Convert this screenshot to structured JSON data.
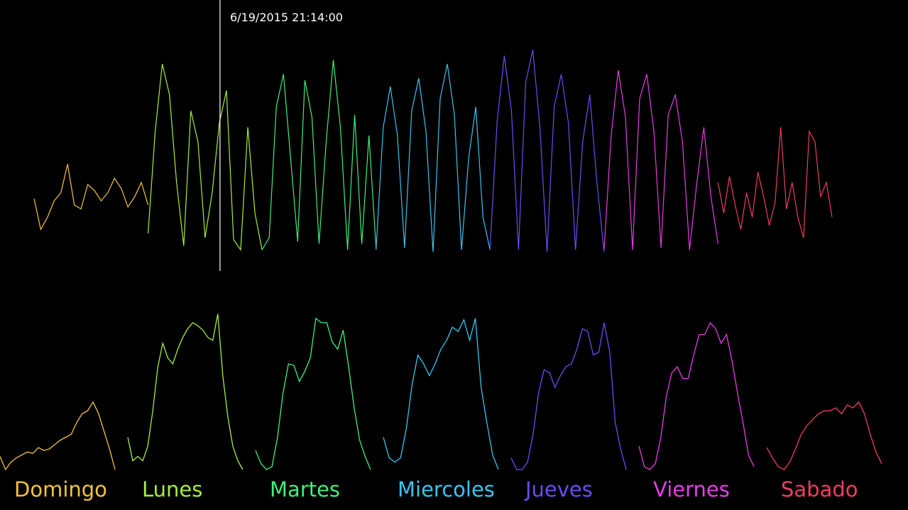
{
  "timestamp": "6/19/2015 21:14:00",
  "chart_data": [
    {
      "type": "line",
      "scale": "normalized 0-1",
      "cursor_fraction": 0.233,
      "series": [
        {
          "day": "Domingo",
          "color": "#f6c33a",
          "values": [
            0.27,
            0.12,
            0.18,
            0.26,
            0.3,
            0.44,
            0.24,
            0.22,
            0.34,
            0.31,
            0.26,
            0.3,
            0.37,
            0.32,
            0.23,
            0.28,
            0.35,
            0.24
          ]
        },
        {
          "day": "Lunes",
          "color": "#a6ef3a",
          "values": [
            0.1,
            0.6,
            0.93,
            0.78,
            0.35,
            0.04,
            0.7,
            0.55,
            0.08,
            0.3,
            0.64,
            0.8,
            0.07,
            0.02,
            0.62,
            0.2,
            0.02
          ]
        },
        {
          "day": "Martes",
          "color": "#3ef07b",
          "values": [
            0.02,
            0.08,
            0.72,
            0.88,
            0.47,
            0.06,
            0.85,
            0.67,
            0.05,
            0.55,
            0.95,
            0.62,
            0.02,
            0.68,
            0.05,
            0.58,
            0.03
          ]
        },
        {
          "day": "Miercoles",
          "color": "#3cc4f0",
          "values": [
            0.02,
            0.62,
            0.82,
            0.58,
            0.03,
            0.7,
            0.86,
            0.6,
            0.01,
            0.76,
            0.93,
            0.68,
            0.02,
            0.47,
            0.72,
            0.18,
            0.02
          ]
        },
        {
          "day": "Jueves",
          "color": "#6b4cf5",
          "values": [
            0.03,
            0.65,
            0.97,
            0.7,
            0.02,
            0.84,
            1.0,
            0.62,
            0.01,
            0.72,
            0.88,
            0.64,
            0.02,
            0.55,
            0.78,
            0.35,
            0.01
          ]
        },
        {
          "day": "Viernes",
          "color": "#e63de6",
          "values": [
            0.02,
            0.58,
            0.9,
            0.67,
            0.02,
            0.76,
            0.88,
            0.6,
            0.03,
            0.68,
            0.78,
            0.55,
            0.02,
            0.34,
            0.62,
            0.28,
            0.05
          ]
        },
        {
          "day": "Sabado",
          "color": "#ee3d65",
          "values": [
            0.35,
            0.2,
            0.38,
            0.24,
            0.12,
            0.3,
            0.18,
            0.4,
            0.28,
            0.14,
            0.25,
            0.62,
            0.22,
            0.35,
            0.18,
            0.08,
            0.6,
            0.55,
            0.28,
            0.35,
            0.18
          ]
        }
      ]
    },
    {
      "type": "line",
      "scale": "normalized 0-1",
      "series": [
        {
          "name": "Domingo",
          "color": "#f6c33a",
          "values": [
            0.09,
            0.0,
            0.05,
            0.08,
            0.1,
            0.12,
            0.11,
            0.15,
            0.13,
            0.14,
            0.17,
            0.2,
            0.22,
            0.24,
            0.32,
            0.38,
            0.4,
            0.46,
            0.38,
            0.26,
            0.14,
            0.0
          ]
        },
        {
          "name": "Lunes",
          "color": "#a6ef3a",
          "values": [
            0.22,
            0.06,
            0.09,
            0.06,
            0.16,
            0.4,
            0.7,
            0.86,
            0.76,
            0.72,
            0.82,
            0.9,
            0.96,
            1.0,
            0.98,
            0.95,
            0.9,
            0.88,
            1.06,
            0.64,
            0.36,
            0.16,
            0.06,
            0.0
          ]
        },
        {
          "name": "Martes",
          "color": "#3ef07b",
          "values": [
            0.13,
            0.04,
            0.0,
            0.02,
            0.22,
            0.52,
            0.72,
            0.71,
            0.6,
            0.67,
            0.76,
            1.03,
            1.0,
            1.0,
            0.87,
            0.82,
            0.95,
            0.7,
            0.42,
            0.2,
            0.09,
            0.0
          ]
        },
        {
          "name": "Miercoles",
          "color": "#3cc4f0",
          "values": [
            0.22,
            0.08,
            0.05,
            0.08,
            0.28,
            0.58,
            0.78,
            0.72,
            0.64,
            0.72,
            0.82,
            0.88,
            0.97,
            0.94,
            1.02,
            0.88,
            1.03,
            0.56,
            0.32,
            0.1,
            0.0
          ]
        },
        {
          "name": "Jueves",
          "color": "#6b4cf5",
          "values": [
            0.08,
            0.0,
            0.0,
            0.05,
            0.24,
            0.52,
            0.68,
            0.66,
            0.56,
            0.64,
            0.7,
            0.72,
            0.82,
            0.96,
            0.94,
            0.78,
            0.8,
            1.0,
            0.8,
            0.32,
            0.14,
            0.0
          ]
        },
        {
          "name": "Viernes",
          "color": "#e63de6",
          "values": [
            0.16,
            0.02,
            0.0,
            0.04,
            0.22,
            0.5,
            0.66,
            0.7,
            0.62,
            0.62,
            0.78,
            0.92,
            0.92,
            1.0,
            0.96,
            0.86,
            0.92,
            0.74,
            0.52,
            0.32,
            0.1,
            0.02
          ]
        },
        {
          "name": "Sabado",
          "color": "#ee3d65",
          "values": [
            0.15,
            0.08,
            0.02,
            0.0,
            0.05,
            0.14,
            0.24,
            0.3,
            0.34,
            0.38,
            0.4,
            0.4,
            0.42,
            0.38,
            0.44,
            0.42,
            0.46,
            0.38,
            0.24,
            0.12,
            0.04
          ]
        }
      ]
    }
  ]
}
